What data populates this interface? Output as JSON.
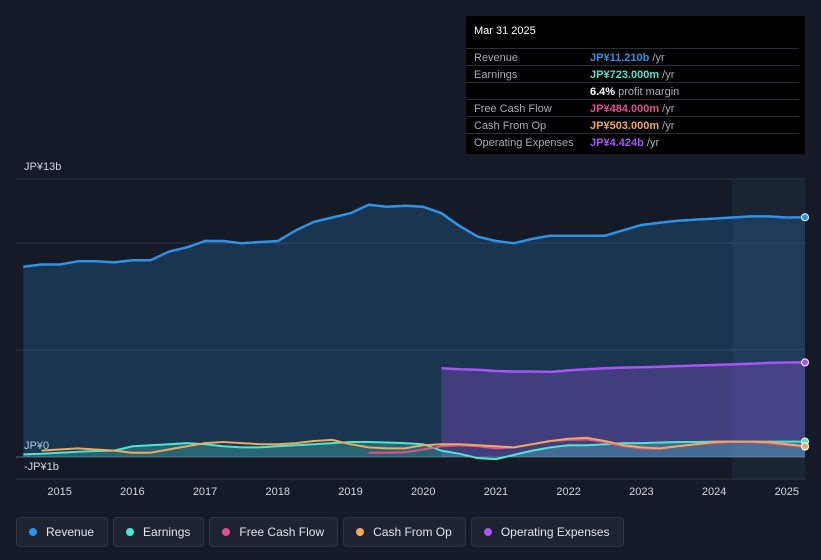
{
  "tooltip": {
    "date": "Mar 31 2025",
    "rows": [
      {
        "label": "Revenue",
        "value": "JP¥11.210b",
        "unit": " /yr",
        "color": "#2e93e6"
      },
      {
        "label": "Earnings",
        "value": "JP¥723.000m",
        "unit": " /yr",
        "color": "#4fe3d2"
      },
      {
        "label": "",
        "value": "6.4%",
        "unit": " profit margin",
        "color": "#ffffff"
      },
      {
        "label": "Free Cash Flow",
        "value": "JP¥484.000m",
        "unit": " /yr",
        "color": "#e0508c"
      },
      {
        "label": "Cash From Op",
        "value": "JP¥503.000m",
        "unit": " /yr",
        "color": "#f0a95a"
      },
      {
        "label": "Operating Expenses",
        "value": "JP¥4.424b",
        "unit": " /yr",
        "color": "#a855f7"
      }
    ]
  },
  "legend": [
    {
      "label": "Revenue",
      "color": "#2e93e6"
    },
    {
      "label": "Earnings",
      "color": "#4fe3d2"
    },
    {
      "label": "Free Cash Flow",
      "color": "#e0508c"
    },
    {
      "label": "Cash From Op",
      "color": "#f0a95a"
    },
    {
      "label": "Operating Expenses",
      "color": "#a855f7"
    }
  ],
  "chart_data": {
    "type": "area",
    "y_axis_labels": {
      "top": "JP¥13b",
      "zero": "JP¥0",
      "bottom": "-JP¥1b"
    },
    "ylim": [
      -1,
      13
    ],
    "xlim": [
      2014.4,
      2025.25
    ],
    "x_ticks": [
      2015,
      2016,
      2017,
      2018,
      2019,
      2020,
      2021,
      2022,
      2023,
      2024,
      2025
    ],
    "gridlines_b": [
      13,
      10,
      5,
      0
    ],
    "forecast_start": 2024.25,
    "series": [
      {
        "name": "Revenue",
        "color": "#2e93e6",
        "fill": true,
        "x": [
          2014.5,
          2014.75,
          2015.0,
          2015.25,
          2015.5,
          2015.75,
          2016.0,
          2016.25,
          2016.5,
          2016.75,
          2017.0,
          2017.25,
          2017.5,
          2017.75,
          2018.0,
          2018.25,
          2018.5,
          2018.75,
          2019.0,
          2019.25,
          2019.5,
          2019.75,
          2020.0,
          2020.25,
          2020.5,
          2020.75,
          2021.0,
          2021.25,
          2021.5,
          2021.75,
          2022.0,
          2022.25,
          2022.5,
          2022.75,
          2023.0,
          2023.25,
          2023.5,
          2023.75,
          2024.0,
          2024.25,
          2024.5,
          2024.75,
          2025.0,
          2025.25
        ],
        "values": [
          8.9,
          9.0,
          9.0,
          9.15,
          9.15,
          9.1,
          9.2,
          9.2,
          9.6,
          9.8,
          10.1,
          10.1,
          10.0,
          10.05,
          10.1,
          10.6,
          11.0,
          11.2,
          11.4,
          11.8,
          11.7,
          11.75,
          11.7,
          11.4,
          10.8,
          10.3,
          10.1,
          10.0,
          10.2,
          10.35,
          10.35,
          10.35,
          10.35,
          10.6,
          10.85,
          10.95,
          11.05,
          11.1,
          11.15,
          11.2,
          11.25,
          11.25,
          11.2,
          11.21
        ]
      },
      {
        "name": "Operating Expenses",
        "color": "#a855f7",
        "fill": true,
        "x": [
          2020.25,
          2020.5,
          2020.75,
          2021.0,
          2021.25,
          2021.5,
          2021.75,
          2022.0,
          2022.25,
          2022.5,
          2022.75,
          2023.0,
          2023.25,
          2023.5,
          2023.75,
          2024.0,
          2024.25,
          2024.5,
          2024.75,
          2025.0,
          2025.25
        ],
        "values": [
          4.15,
          4.1,
          4.08,
          4.02,
          4.0,
          4.0,
          3.98,
          4.05,
          4.1,
          4.15,
          4.18,
          4.2,
          4.22,
          4.25,
          4.28,
          4.3,
          4.33,
          4.36,
          4.4,
          4.42,
          4.424
        ]
      },
      {
        "name": "Earnings",
        "color": "#4fe3d2",
        "fill": true,
        "x": [
          2014.5,
          2014.75,
          2015.0,
          2015.25,
          2015.5,
          2015.75,
          2016.0,
          2016.25,
          2016.5,
          2016.75,
          2017.0,
          2017.25,
          2017.5,
          2017.75,
          2018.0,
          2018.25,
          2018.5,
          2018.75,
          2019.0,
          2019.25,
          2019.5,
          2019.75,
          2020.0,
          2020.25,
          2020.5,
          2020.75,
          2021.0,
          2021.25,
          2021.5,
          2021.75,
          2022.0,
          2022.25,
          2022.5,
          2022.75,
          2023.0,
          2023.25,
          2023.5,
          2023.75,
          2024.0,
          2024.25,
          2024.5,
          2024.75,
          2025.0,
          2025.25
        ],
        "values": [
          0.12,
          0.15,
          0.2,
          0.25,
          0.28,
          0.3,
          0.5,
          0.55,
          0.6,
          0.65,
          0.6,
          0.5,
          0.45,
          0.45,
          0.5,
          0.55,
          0.6,
          0.65,
          0.7,
          0.7,
          0.68,
          0.65,
          0.6,
          0.3,
          0.15,
          -0.05,
          -0.1,
          0.1,
          0.3,
          0.45,
          0.55,
          0.55,
          0.6,
          0.65,
          0.65,
          0.68,
          0.7,
          0.7,
          0.72,
          0.72,
          0.72,
          0.72,
          0.72,
          0.723
        ]
      },
      {
        "name": "Free Cash Flow",
        "color": "#e0508c",
        "fill": false,
        "x": [
          2019.25,
          2019.5,
          2019.75,
          2020.0,
          2020.25,
          2020.5,
          2020.75,
          2021.0,
          2021.25,
          2021.5,
          2021.75,
          2022.0,
          2022.25,
          2022.5,
          2022.75,
          2023.0,
          2023.25,
          2023.5,
          2023.75,
          2024.0,
          2024.25,
          2024.5,
          2024.75,
          2025.0,
          2025.25
        ],
        "values": [
          0.2,
          0.2,
          0.22,
          0.35,
          0.5,
          0.55,
          0.5,
          0.4,
          0.45,
          0.6,
          0.75,
          0.8,
          0.82,
          0.7,
          0.5,
          0.4,
          0.38,
          0.5,
          0.6,
          0.65,
          0.7,
          0.7,
          0.65,
          0.55,
          0.484
        ]
      },
      {
        "name": "Cash From Op",
        "color": "#f0a95a",
        "fill": false,
        "x": [
          2014.75,
          2015.0,
          2015.25,
          2015.5,
          2015.75,
          2016.0,
          2016.25,
          2016.5,
          2016.75,
          2017.0,
          2017.25,
          2017.5,
          2017.75,
          2018.0,
          2018.25,
          2018.5,
          2018.75,
          2019.0,
          2019.25,
          2019.5,
          2019.75,
          2020.0,
          2020.25,
          2020.5,
          2020.75,
          2021.0,
          2021.25,
          2021.5,
          2021.75,
          2022.0,
          2022.25,
          2022.5,
          2022.75,
          2023.0,
          2023.25,
          2023.5,
          2023.75,
          2024.0,
          2024.25,
          2024.5,
          2024.75,
          2025.0,
          2025.25
        ],
        "values": [
          0.3,
          0.35,
          0.4,
          0.35,
          0.3,
          0.2,
          0.2,
          0.35,
          0.5,
          0.65,
          0.7,
          0.65,
          0.6,
          0.6,
          0.65,
          0.75,
          0.8,
          0.6,
          0.45,
          0.4,
          0.4,
          0.55,
          0.6,
          0.6,
          0.55,
          0.5,
          0.45,
          0.6,
          0.75,
          0.85,
          0.9,
          0.75,
          0.55,
          0.45,
          0.4,
          0.5,
          0.6,
          0.7,
          0.72,
          0.72,
          0.7,
          0.6,
          0.503
        ]
      }
    ]
  }
}
